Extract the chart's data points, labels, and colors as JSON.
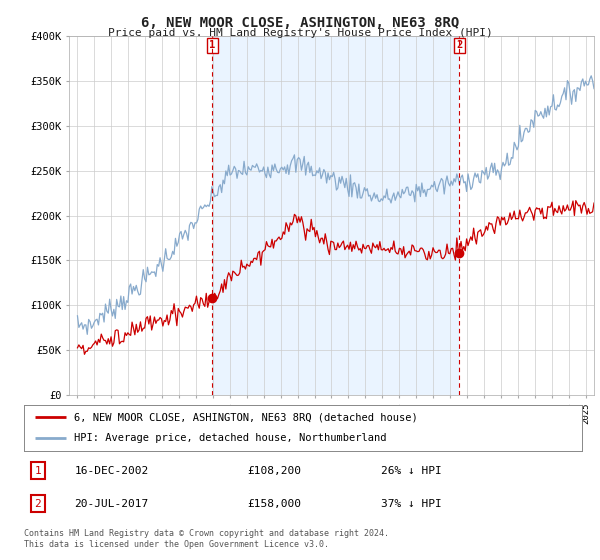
{
  "title": "6, NEW MOOR CLOSE, ASHINGTON, NE63 8RQ",
  "subtitle": "Price paid vs. HM Land Registry's House Price Index (HPI)",
  "ylabel_ticks": [
    "£0",
    "£50K",
    "£100K",
    "£150K",
    "£200K",
    "£250K",
    "£300K",
    "£350K",
    "£400K"
  ],
  "ytick_values": [
    0,
    50000,
    100000,
    150000,
    200000,
    250000,
    300000,
    350000,
    400000
  ],
  "ylim": [
    0,
    400000
  ],
  "xlim_start": 1994.5,
  "xlim_end": 2025.5,
  "marker1_x": 2002.96,
  "marker1_y": 108200,
  "marker1_label": "1",
  "marker1_date": "16-DEC-2002",
  "marker1_price": "£108,200",
  "marker1_pct": "26% ↓ HPI",
  "marker2_x": 2017.55,
  "marker2_y": 158000,
  "marker2_label": "2",
  "marker2_date": "20-JUL-2017",
  "marker2_price": "£158,000",
  "marker2_pct": "37% ↓ HPI",
  "legend_line1": "6, NEW MOOR CLOSE, ASHINGTON, NE63 8RQ (detached house)",
  "legend_line2": "HPI: Average price, detached house, Northumberland",
  "footer": "Contains HM Land Registry data © Crown copyright and database right 2024.\nThis data is licensed under the Open Government Licence v3.0.",
  "red_color": "#cc0000",
  "blue_color": "#88aacc",
  "blue_fill": "#ddeeff",
  "bg_color": "#ffffff",
  "grid_color": "#cccccc"
}
